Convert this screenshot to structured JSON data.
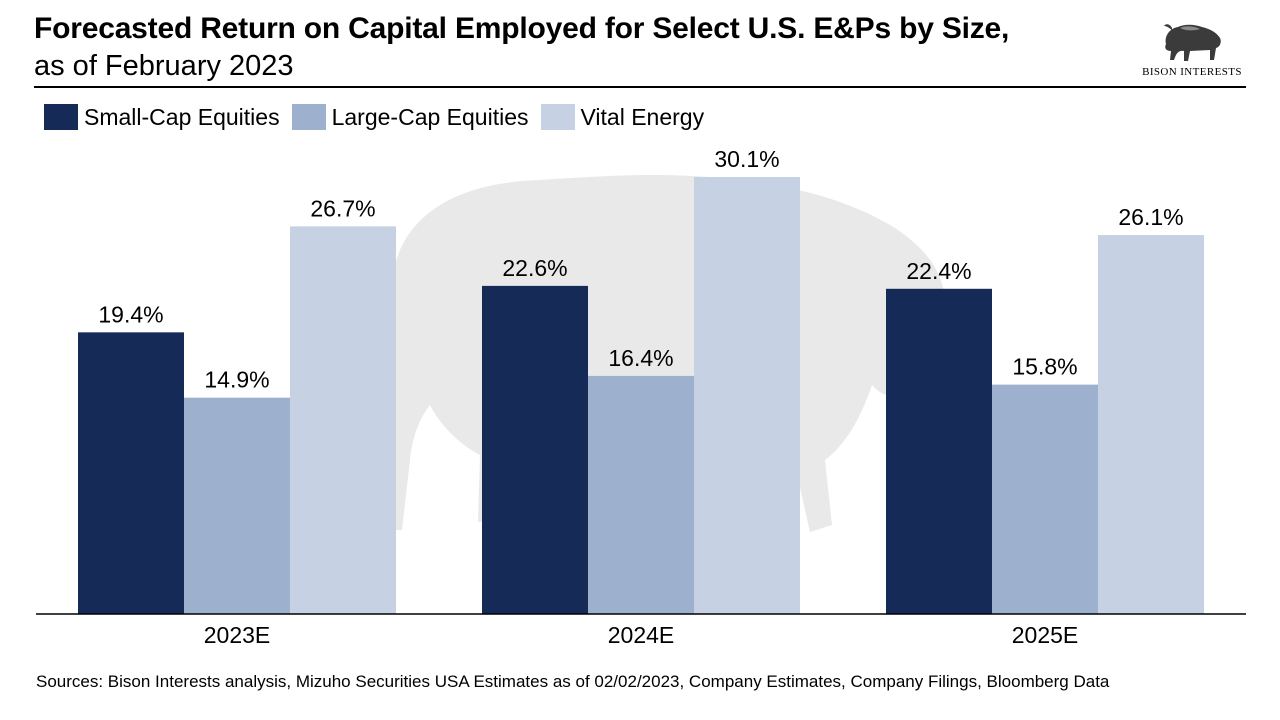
{
  "header": {
    "title": "Forecasted Return on Capital Employed for Select U.S. E&Ps by Size,",
    "subtitle": "as of February 2023"
  },
  "logo": {
    "text": "BISON INTERESTS",
    "icon": "bison-icon"
  },
  "watermark": {
    "icon": "bison-watermark-icon"
  },
  "colors": {
    "small_cap": "#162a58",
    "large_cap": "#9db0ce",
    "vital_energy": "#c6d1e3",
    "watermark": "#e9e9e9"
  },
  "chart_data": {
    "type": "bar",
    "categories": [
      "2023E",
      "2024E",
      "2025E"
    ],
    "series": [
      {
        "name": "Small-Cap Equities",
        "values": [
          19.4,
          22.6,
          22.4
        ],
        "labels": [
          "19.4%",
          "22.6%",
          "22.4%"
        ]
      },
      {
        "name": "Large-Cap Equities",
        "values": [
          14.9,
          16.4,
          15.8
        ],
        "labels": [
          "14.9%",
          "16.4%",
          "15.8%"
        ]
      },
      {
        "name": "Vital Energy",
        "values": [
          26.7,
          30.1,
          26.1
        ],
        "labels": [
          "26.7%",
          "30.1%",
          "26.1%"
        ]
      }
    ],
    "title": "Forecasted Return on Capital Employed for Select U.S. E&Ps by Size,",
    "subtitle": "as of February 2023",
    "xlabel": "",
    "ylabel": "",
    "ylim": [
      0,
      30.1
    ],
    "grid": false,
    "legend_position": "top-left"
  },
  "footer": {
    "sources": "Sources: Bison Interests analysis, Mizuho Securities USA Estimates as of 02/02/2023, Company Estimates, Company Filings, Bloomberg Data"
  }
}
